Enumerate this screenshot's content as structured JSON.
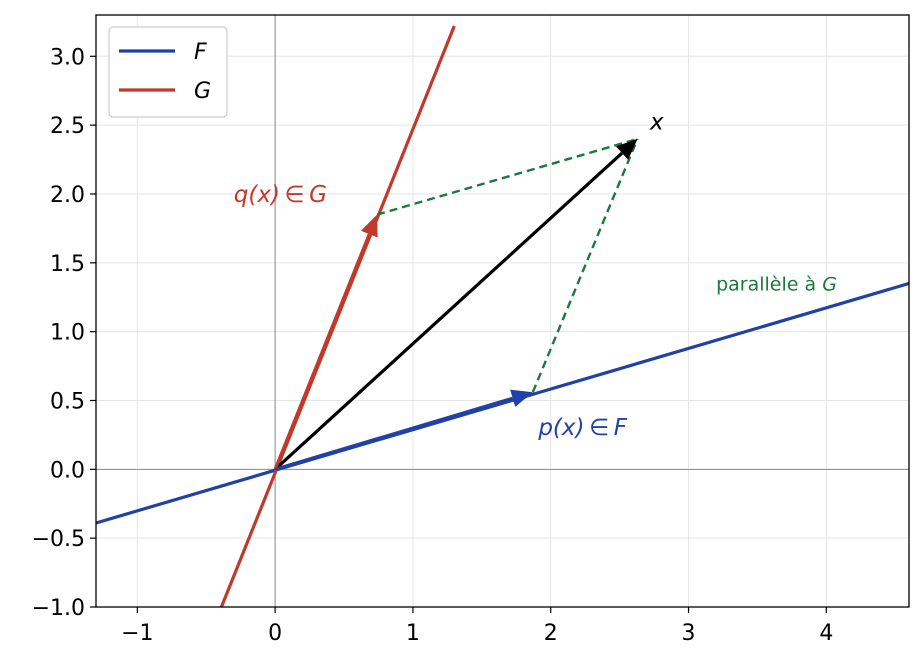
{
  "chart_data": {
    "type": "line",
    "title": "",
    "xlabel": "",
    "ylabel": "",
    "xlim": [
      -1.3,
      4.6
    ],
    "ylim": [
      -1.0,
      3.3
    ],
    "xticks": [
      -1,
      0,
      1,
      2,
      3,
      4
    ],
    "xtick_labels": [
      "−1",
      "0",
      "1",
      "2",
      "3",
      "4"
    ],
    "yticks": [
      -1.0,
      -0.5,
      0.0,
      0.5,
      1.0,
      1.5,
      2.0,
      2.5,
      3.0
    ],
    "ytick_labels": [
      "−1.0",
      "−0.5",
      "0.0",
      "0.5",
      "1.0",
      "1.5",
      "2.0",
      "2.5",
      "3.0"
    ],
    "grid": true,
    "legend_position": "top-left",
    "series": [
      {
        "name": "F",
        "kind": "line",
        "color": "#2140a8",
        "points": [
          [
            -1.3,
            -0.39
          ],
          [
            4.6,
            1.35
          ]
        ]
      },
      {
        "name": "G",
        "kind": "line",
        "color": "#c0392b",
        "points": [
          [
            -0.39,
            -1.0
          ],
          [
            1.3,
            3.22
          ]
        ]
      }
    ],
    "vectors": [
      {
        "name": "x",
        "from": [
          0,
          0
        ],
        "to": [
          2.63,
          2.4
        ],
        "color": "#000000"
      },
      {
        "name": "q(x)",
        "from": [
          0,
          0
        ],
        "to": [
          0.74,
          1.85
        ],
        "color": "#c0392b"
      },
      {
        "name": "p(x)",
        "from": [
          0,
          0
        ],
        "to": [
          1.87,
          0.56
        ],
        "color": "#2140a8"
      }
    ],
    "dashed_lines": [
      {
        "from": [
          0.74,
          1.85
        ],
        "to": [
          2.63,
          2.4
        ],
        "color": "#1a7a3a"
      },
      {
        "from": [
          1.87,
          0.56
        ],
        "to": [
          2.63,
          2.4
        ],
        "color": "#1a7a3a"
      }
    ],
    "annotations": [
      {
        "text": "x",
        "at": [
          2.72,
          2.47
        ],
        "color": "#000000",
        "style": "math"
      },
      {
        "text": "q(x) ∈ G",
        "at": [
          -0.3,
          1.94
        ],
        "color": "#c0392b",
        "style": "math"
      },
      {
        "text": "p(x) ∈ F",
        "at": [
          1.91,
          0.25
        ],
        "color": "#2140a8",
        "style": "math"
      },
      {
        "text": "parallèle à ",
        "text_italic": "G",
        "at": [
          3.2,
          1.3
        ],
        "color": "#1a7a3a",
        "style": "small"
      }
    ]
  }
}
